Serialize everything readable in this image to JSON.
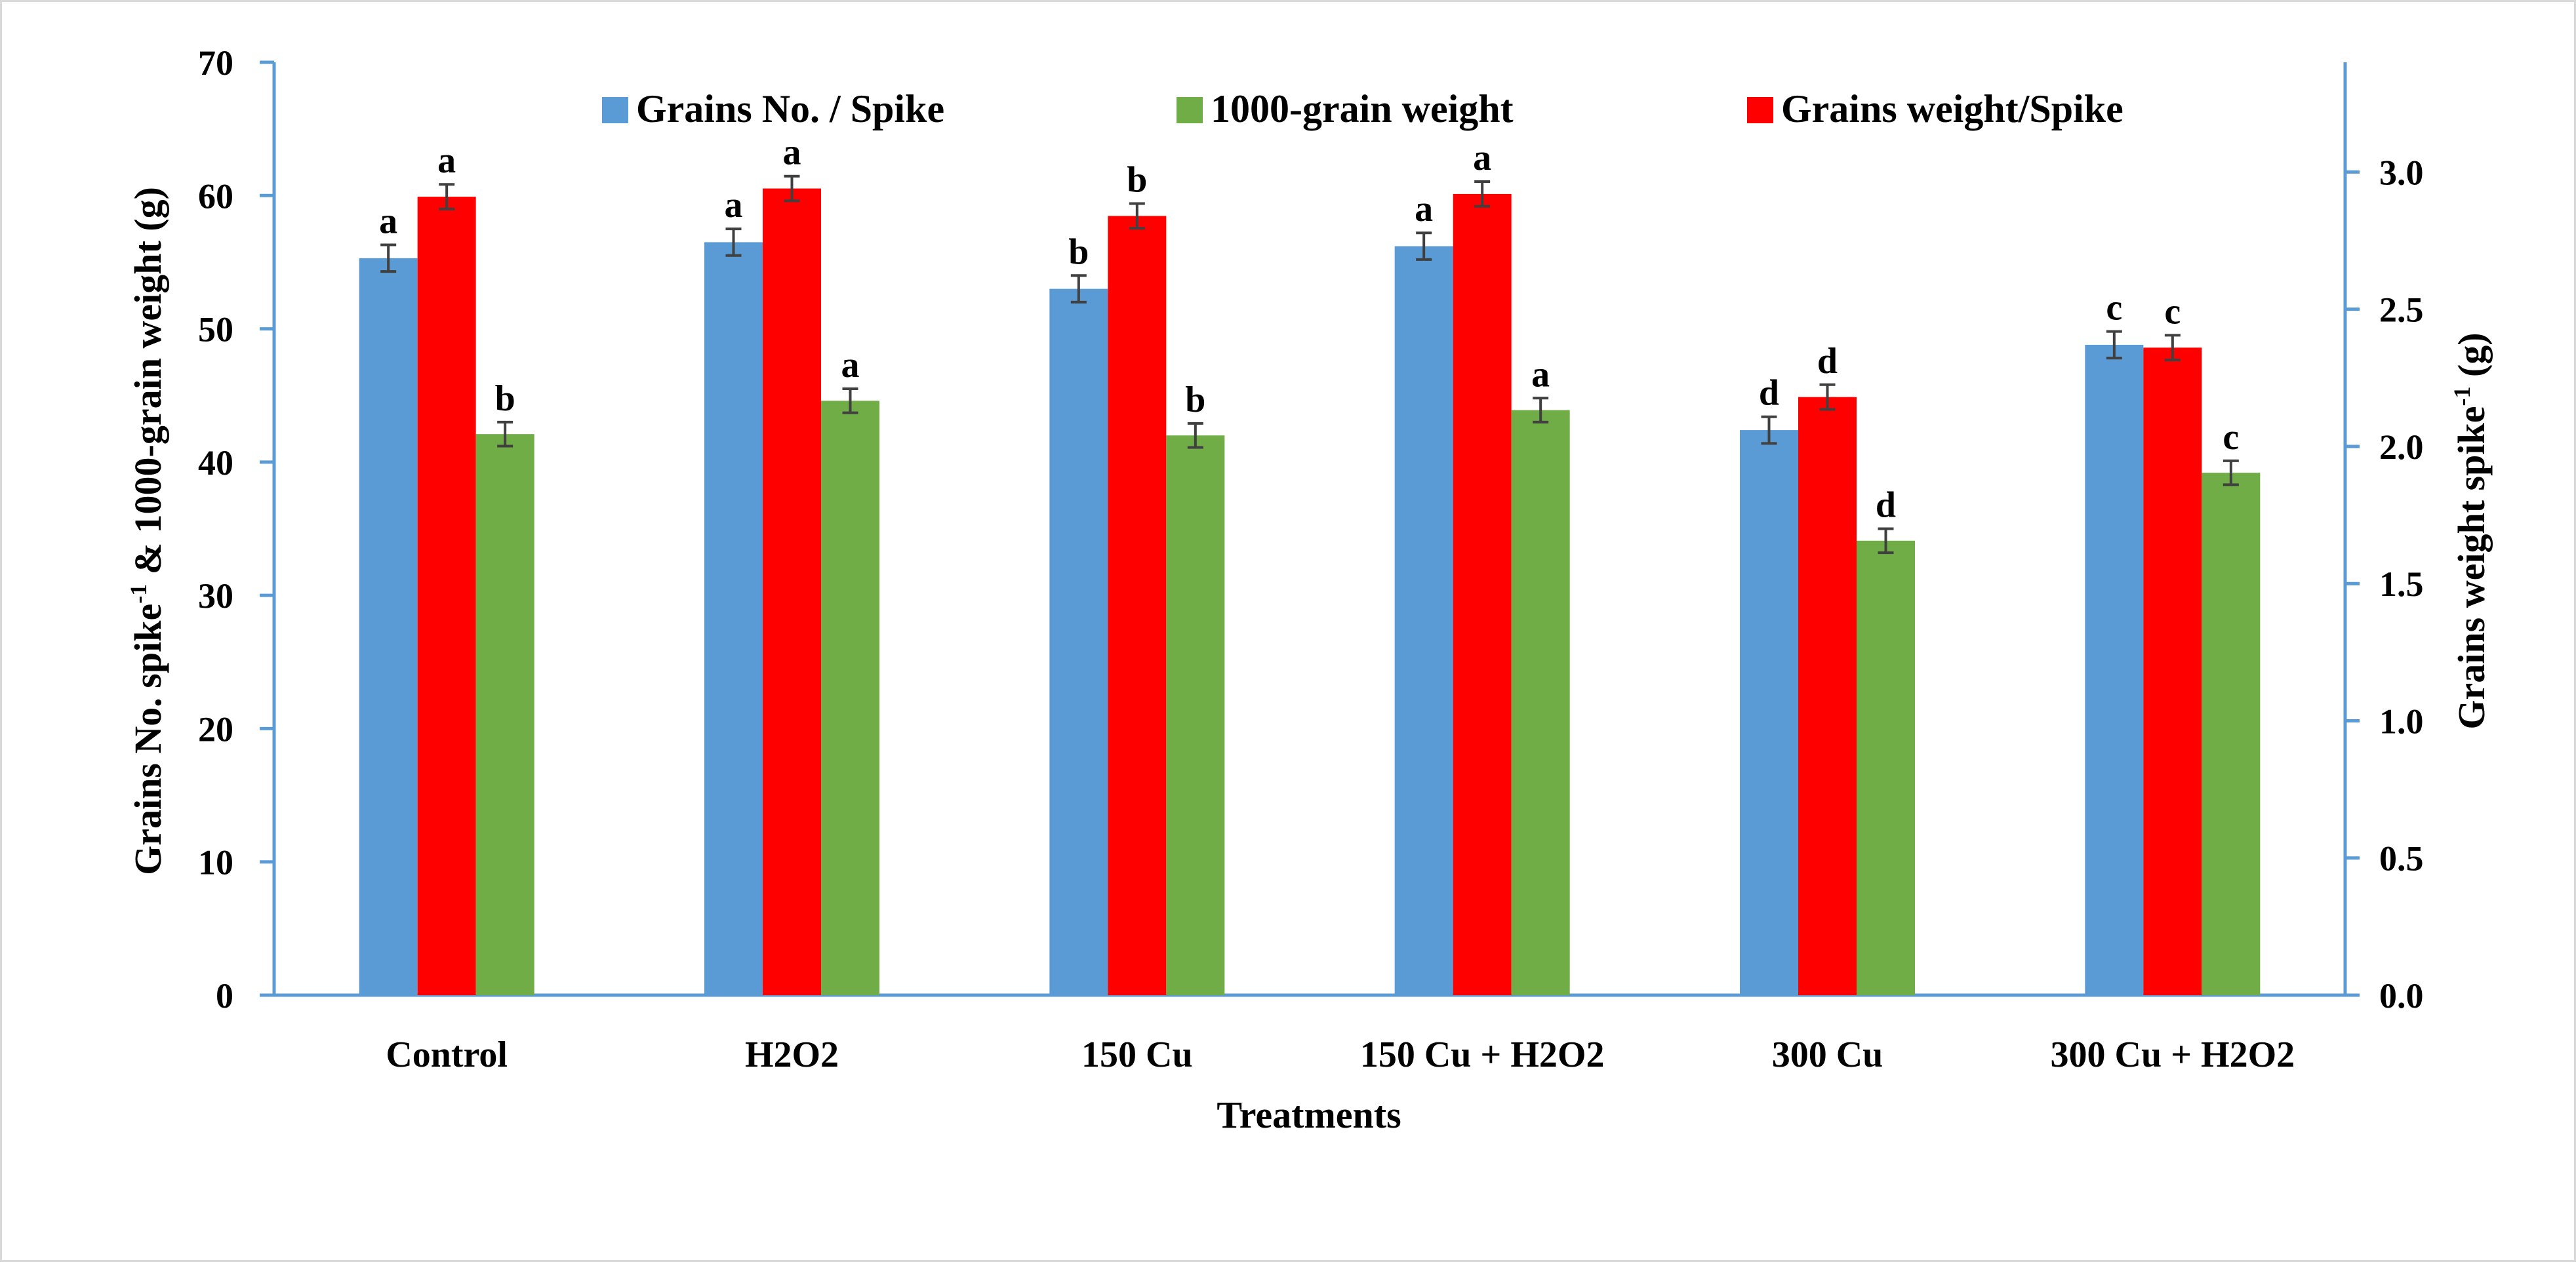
{
  "chart_data": {
    "type": "bar",
    "categories": [
      "Control",
      "H2O2",
      "150 Cu",
      "150 Cu + H2O2",
      "300 Cu",
      "300 Cu + H2O2"
    ],
    "xlabel": "Treatments",
    "ylabel_left": {
      "main": "Grains No. spike",
      "sup": "-1",
      "tail": " & 1000-grain weight (g)"
    },
    "ylabel_right": {
      "main": "Grains weight spike",
      "sup": "-1",
      "tail": " (g)"
    },
    "ylim_left": [
      0,
      70
    ],
    "ylim_right": [
      0,
      3.4
    ],
    "yticks_left": [
      "0",
      "10",
      "20",
      "30",
      "40",
      "50",
      "60",
      "70"
    ],
    "yticks_right": [
      "0.0",
      "0.5",
      "1.0",
      "1.5",
      "2.0",
      "2.5",
      "3.0"
    ],
    "grid": false,
    "legend_position": "top",
    "series": [
      {
        "name": "Grains No. / Spike",
        "axis": "left",
        "color": "#5b9bd5",
        "values": [
          55.3,
          56.5,
          53.0,
          56.2,
          42.4,
          48.8
        ],
        "errors": [
          1.0,
          1.0,
          1.0,
          1.0,
          1.0,
          1.0
        ],
        "labels": [
          "a",
          "a",
          "b",
          "a",
          "d",
          "c"
        ]
      },
      {
        "name": "Grains weight/Spike",
        "axis": "right",
        "color": "#ff0000",
        "values": [
          2.91,
          2.94,
          2.84,
          2.92,
          2.18,
          2.36
        ],
        "errors": [
          0.045,
          0.045,
          0.045,
          0.045,
          0.045,
          0.045
        ],
        "labels": [
          "a",
          "a",
          "b",
          "a",
          "d",
          "c"
        ]
      },
      {
        "name": "1000-grain weight",
        "axis": "left",
        "color": "#70ad47",
        "values": [
          42.1,
          44.6,
          42.0,
          43.9,
          34.1,
          39.2
        ],
        "errors": [
          0.9,
          0.9,
          0.9,
          0.9,
          0.9,
          0.9
        ],
        "labels": [
          "b",
          "a",
          "b",
          "a",
          "d",
          "c"
        ]
      }
    ],
    "legend": [
      {
        "name": "Grains No. / Spike",
        "color": "#5b9bd5"
      },
      {
        "name": "1000-grain weight",
        "color": "#70ad47"
      },
      {
        "name": "Grains weight/Spike",
        "color": "#ff0000"
      }
    ]
  }
}
